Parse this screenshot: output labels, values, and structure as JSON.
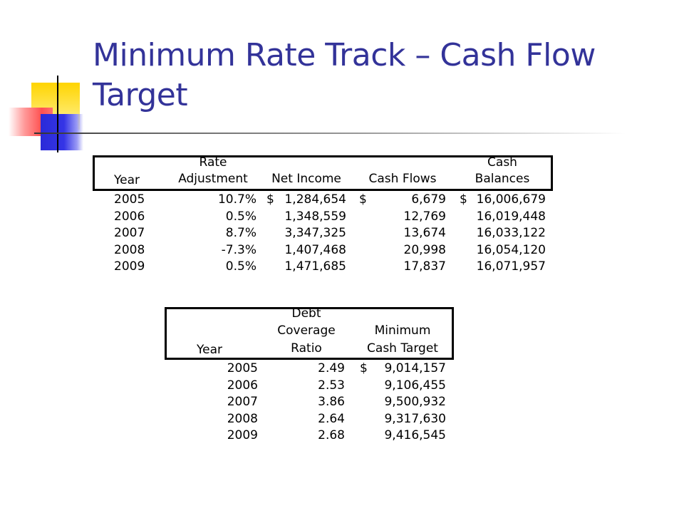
{
  "slide": {
    "title": "Minimum Rate Track – Cash Flow Target"
  },
  "table1": {
    "headers": {
      "year": "Year",
      "rate_line1": "Rate",
      "rate_line2": "Adjustment",
      "net_income": "Net Income",
      "cash_flows": "Cash Flows",
      "cash_line1": "Cash",
      "cash_line2": "Balances"
    },
    "rows": [
      {
        "year": "2005",
        "rate": "10.7%",
        "ni_sym": "$",
        "net_income": "1,284,654",
        "cf_sym": "$",
        "cash_flows": "6,679",
        "cb_sym": "$",
        "cash_balances": "16,006,679"
      },
      {
        "year": "2006",
        "rate": "0.5%",
        "ni_sym": "",
        "net_income": "1,348,559",
        "cf_sym": "",
        "cash_flows": "12,769",
        "cb_sym": "",
        "cash_balances": "16,019,448"
      },
      {
        "year": "2007",
        "rate": "8.7%",
        "ni_sym": "",
        "net_income": "3,347,325",
        "cf_sym": "",
        "cash_flows": "13,674",
        "cb_sym": "",
        "cash_balances": "16,033,122"
      },
      {
        "year": "2008",
        "rate": "-7.3%",
        "ni_sym": "",
        "net_income": "1,407,468",
        "cf_sym": "",
        "cash_flows": "20,998",
        "cb_sym": "",
        "cash_balances": "16,054,120"
      },
      {
        "year": "2009",
        "rate": "0.5%",
        "ni_sym": "",
        "net_income": "1,471,685",
        "cf_sym": "",
        "cash_flows": "17,837",
        "cb_sym": "",
        "cash_balances": "16,071,957"
      }
    ]
  },
  "table2": {
    "headers": {
      "year": "Year",
      "dcr_line1": "Debt",
      "dcr_line2": "Coverage",
      "dcr_line3": "Ratio",
      "min_line1": "Minimum",
      "min_line2": "Cash Target"
    },
    "rows": [
      {
        "year": "2005",
        "ratio": "2.49",
        "sym": "$",
        "target": "9,014,157"
      },
      {
        "year": "2006",
        "ratio": "2.53",
        "sym": "",
        "target": "9,106,455"
      },
      {
        "year": "2007",
        "ratio": "3.86",
        "sym": "",
        "target": "9,500,932"
      },
      {
        "year": "2008",
        "ratio": "2.64",
        "sym": "",
        "target": "9,317,630"
      },
      {
        "year": "2009",
        "ratio": "2.68",
        "sym": "",
        "target": "9,416,545"
      }
    ]
  }
}
